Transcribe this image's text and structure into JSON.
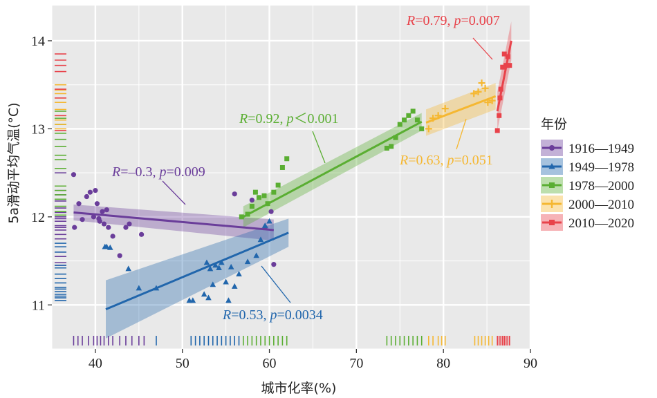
{
  "chart_data": {
    "type": "scatter",
    "xlabel": "城市化率(%)",
    "ylabel": "5a滑动平均气温(°C)",
    "xlim": [
      35,
      90
    ],
    "ylim": [
      10.5,
      14.4
    ],
    "x_ticks": [
      40,
      50,
      60,
      70,
      80,
      90
    ],
    "y_ticks": [
      11,
      12,
      13,
      14
    ],
    "grid": true,
    "legend_title": "年份",
    "legend_position": "right",
    "series": [
      {
        "name": "1916—1949",
        "color": "#6a3d9a",
        "marker": "circle",
        "x": [
          37.5,
          37.6,
          38.1,
          38.5,
          39.0,
          39.4,
          39.8,
          40.0,
          40.2,
          40.4,
          40.5,
          40.8,
          41.0,
          41.3,
          41.5,
          42.0,
          42.8,
          43.5,
          43.9,
          45.3,
          56.0,
          58.0,
          59.5,
          60.2,
          60.5
        ],
        "y": [
          12.48,
          11.88,
          12.15,
          11.97,
          12.23,
          12.28,
          12.0,
          12.3,
          12.15,
          11.98,
          11.95,
          12.06,
          11.92,
          12.08,
          11.88,
          11.78,
          11.56,
          11.88,
          11.92,
          11.8,
          12.26,
          12.19,
          11.88,
          12.06,
          11.46
        ],
        "fit": {
          "x": [
            37.5,
            60.5
          ],
          "y": [
            12.05,
            11.85
          ],
          "ci_half": [
            0.09,
            0.12
          ]
        },
        "annotation": {
          "R": "–0.3",
          "p": "p=0.009"
        },
        "rug_x": [
          37.5,
          38.0,
          38.5,
          39.2,
          39.8,
          40.2,
          40.6,
          41.0,
          41.5,
          42.0,
          42.8,
          43.5,
          44.2,
          45.0,
          45.6
        ]
      },
      {
        "name": "1949—1978",
        "color": "#2166ac",
        "marker": "triangle",
        "x": [
          41.1,
          41.3,
          41.7,
          43.8,
          45.0,
          47.0,
          50.8,
          51.2,
          52.5,
          52.8,
          53.0,
          53.2,
          53.5,
          53.8,
          54.2,
          54.5,
          55.0,
          55.3,
          55.6,
          56.0,
          56.5,
          57.5,
          58.5,
          59.0,
          59.5,
          60.0
        ],
        "y": [
          11.66,
          11.66,
          11.65,
          11.41,
          11.19,
          11.19,
          11.05,
          11.05,
          11.12,
          11.48,
          11.08,
          11.41,
          11.23,
          11.45,
          11.42,
          11.48,
          11.26,
          11.05,
          11.43,
          11.21,
          11.35,
          11.49,
          11.56,
          11.74,
          11.9,
          11.95
        ],
        "fit": {
          "x": [
            41.2,
            62.2
          ],
          "y": [
            10.95,
            11.82
          ],
          "ci_half": [
            0.33,
            0.16
          ]
        },
        "annotation": {
          "R": "0.53",
          "p": "p=0.0034"
        },
        "rug_x": [
          47.0,
          51.0,
          51.5,
          52.0,
          52.5,
          53.0,
          53.5,
          54.0,
          54.5,
          55.0,
          55.5,
          56.0,
          56.5
        ]
      },
      {
        "name": "1978—2000",
        "color": "#5aae32",
        "marker": "square",
        "x": [
          56.8,
          57.5,
          58.0,
          58.4,
          58.8,
          59.4,
          59.8,
          60.5,
          61.0,
          61.5,
          62.0,
          73.5,
          74.0,
          74.5,
          75.0,
          75.5,
          76.0,
          76.5,
          77.0,
          77.5
        ],
        "y": [
          12.0,
          12.03,
          12.12,
          12.28,
          12.22,
          12.24,
          12.15,
          12.28,
          12.36,
          12.56,
          12.66,
          12.78,
          12.8,
          12.9,
          13.05,
          13.1,
          13.15,
          13.2,
          13.1,
          13.0
        ],
        "fit": {
          "x": [
            57.0,
            77.5
          ],
          "y": [
            12.0,
            13.08
          ],
          "ci_half": [
            0.12,
            0.1
          ]
        },
        "annotation": {
          "R": "0.92",
          "p": "p＜0.001"
        },
        "rug_x": [
          57.0,
          57.5,
          58.0,
          58.5,
          59.0,
          59.5,
          60.0,
          60.5,
          61.0,
          61.5,
          62.0,
          73.5,
          74.0,
          74.5,
          75.0,
          75.5,
          76.0,
          76.5,
          77.0,
          77.5
        ]
      },
      {
        "name": "2000—2010",
        "color": "#f5b731",
        "marker": "plus",
        "x": [
          78.3,
          78.8,
          79.4,
          80.2,
          83.5,
          84.0,
          84.4,
          84.8,
          85.1,
          85.6
        ],
        "y": [
          13.0,
          13.12,
          13.15,
          13.23,
          13.4,
          13.42,
          13.52,
          13.46,
          13.3,
          13.32
        ],
        "fit": {
          "x": [
            78.0,
            86.0
          ],
          "y": [
            13.07,
            13.37
          ],
          "ci_half": [
            0.15,
            0.15
          ]
        },
        "annotation": {
          "R": "0.63",
          "p": "p=0.051"
        },
        "rug_x": [
          78.3,
          78.8,
          79.4,
          79.8,
          80.2,
          83.6,
          84.0,
          84.4,
          84.8,
          85.2,
          85.6
        ]
      },
      {
        "name": "2010—2020",
        "color": "#e8424a",
        "marker": "square",
        "x": [
          86.2,
          86.4,
          86.5,
          86.6,
          86.8,
          87.0,
          87.2,
          87.4,
          87.6
        ],
        "y": [
          12.98,
          13.15,
          13.35,
          13.45,
          13.7,
          13.85,
          13.72,
          13.82,
          13.72
        ],
        "fit": {
          "x": [
            86.2,
            87.8
          ],
          "y": [
            13.2,
            14.0
          ],
          "ci_half": [
            0.22,
            0.22
          ]
        },
        "annotation": {
          "R": "0.79",
          "p": "p=0.007"
        },
        "rug_x": [
          86.2,
          86.4,
          86.6,
          86.8,
          87.0,
          87.2,
          87.4,
          87.6
        ]
      }
    ],
    "y_rug": [
      {
        "series": 0,
        "y": [
          12.5,
          12.3,
          12.25,
          12.2,
          12.18,
          12.1,
          12.05,
          12.0,
          11.98,
          11.95,
          11.9,
          11.88,
          11.85,
          11.8,
          11.75,
          11.6,
          11.55,
          11.48,
          11.45
        ]
      },
      {
        "series": 1,
        "y": [
          11.7,
          11.66,
          11.6,
          11.45,
          11.42,
          11.35,
          11.3,
          11.25,
          11.2,
          11.18,
          11.15,
          11.12,
          11.1,
          11.08,
          11.05
        ]
      },
      {
        "series": 2,
        "y": [
          13.2,
          13.12,
          13.05,
          12.95,
          12.88,
          12.8,
          12.7,
          12.65,
          12.55,
          12.35,
          12.3,
          12.25,
          12.2,
          12.12,
          12.06,
          12.02
        ]
      },
      {
        "series": 3,
        "y": [
          13.5,
          13.44,
          13.4,
          13.35,
          13.3,
          13.22,
          13.15,
          13.1,
          13.05,
          13.0
        ]
      },
      {
        "series": 4,
        "y": [
          13.85,
          13.78,
          13.72,
          13.65,
          13.45,
          13.35,
          13.15,
          12.98
        ]
      }
    ]
  }
}
